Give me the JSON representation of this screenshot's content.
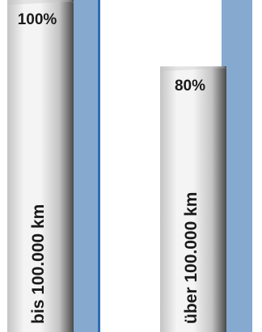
{
  "chart_data": {
    "type": "bar",
    "orientation": "vertical",
    "categories": [
      "bis 100.000 km",
      "über 100.000 km"
    ],
    "values": [
      100,
      80
    ],
    "value_labels": [
      "100%",
      "80%"
    ],
    "unit": "%",
    "ylim": [
      0,
      100
    ],
    "colors": {
      "bar_light": "#f4f4f4",
      "bar_mid": "#c4c4c4",
      "bar_dark": "#4a4a4a",
      "backdrop": "#86a9d0",
      "edge_line": "#2f6fb0",
      "text": "#1a1a1a"
    }
  }
}
